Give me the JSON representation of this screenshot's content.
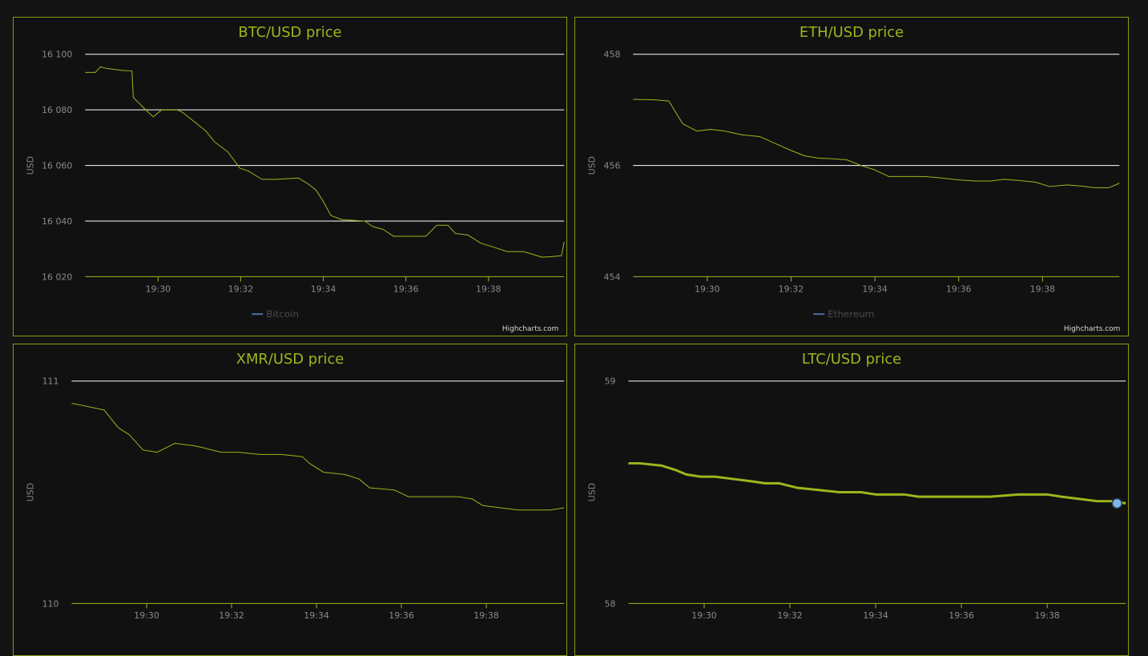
{
  "colors": {
    "series": "#9fb51c",
    "grid": "#ffffff",
    "axis": "#9fb51c",
    "marker": "#7cb5ec",
    "legend_symbol": "#4572a7",
    "title": "#9fb51c"
  },
  "chart_data": [
    {
      "type": "line",
      "title": "BTC/USD price",
      "ylabel": "USD",
      "xlabel": "",
      "ylim": [
        16020,
        16100
      ],
      "yticks": [
        16020,
        16040,
        16060,
        16080,
        16100
      ],
      "ytick_labels": [
        "16 020",
        "16 040",
        "16 060",
        "16 080",
        "16 100"
      ],
      "xlim": [
        "19:28:14",
        "19:39:50"
      ],
      "xtick_labels": [
        "19:30",
        "19:32",
        "19:34",
        "19:36",
        "19:38"
      ],
      "legend": "Bitcoin",
      "legend_placement": "bottom-center",
      "credits": "Highcharts.com",
      "grid": true,
      "series": [
        {
          "name": "Bitcoin",
          "x": [
            "19:28:14",
            "19:28:29",
            "19:28:36",
            "19:28:43",
            "19:29:07",
            "19:29:22",
            "19:29:24",
            "19:29:42",
            "19:29:53",
            "19:30:05",
            "19:30:28",
            "19:30:36",
            "19:31:09",
            "19:31:22",
            "19:31:41",
            "19:31:59",
            "19:32:11",
            "19:32:31",
            "19:32:51",
            "19:33:24",
            "19:33:40",
            "19:33:50",
            "19:34:00",
            "19:34:11",
            "19:34:27",
            "19:35:00",
            "19:35:12",
            "19:35:27",
            "19:35:42",
            "19:36:20",
            "19:36:29",
            "19:36:45",
            "19:37:01",
            "19:37:12",
            "19:37:30",
            "19:37:49",
            "19:38:09",
            "19:38:27",
            "19:38:51",
            "19:39:18",
            "19:39:32",
            "19:39:46",
            "19:39:50"
          ],
          "values": [
            16093.5,
            16093.5,
            16095.5,
            16095.0,
            16094.2,
            16094.0,
            16084.5,
            16080.0,
            16077.5,
            16080.0,
            16080.0,
            16079.0,
            16072.5,
            16068.5,
            16065.0,
            16059.0,
            16058.0,
            16055.0,
            16055.0,
            16055.5,
            16053.0,
            16051.0,
            16047.0,
            16042.0,
            16040.5,
            16040.0,
            16038.0,
            16037.0,
            16034.5,
            16034.5,
            16034.5,
            16038.5,
            16038.5,
            16035.5,
            16035.0,
            16032.0,
            16030.5,
            16029.0,
            16029.0,
            16027.0,
            16027.2,
            16027.5,
            16032.5
          ]
        }
      ]
    },
    {
      "type": "line",
      "title": "ETH/USD price",
      "ylabel": "USD",
      "xlabel": "",
      "ylim": [
        454,
        458
      ],
      "yticks": [
        454,
        456,
        458
      ],
      "ytick_labels": [
        "454",
        "456",
        "458"
      ],
      "xlim": [
        "19:28:14",
        "19:39:50"
      ],
      "xtick_labels": [
        "19:30",
        "19:32",
        "19:34",
        "19:36",
        "19:38"
      ],
      "legend": "Ethereum",
      "legend_placement": "bottom-center",
      "credits": "Highcharts.com",
      "grid": true,
      "series": [
        {
          "name": "Ethereum",
          "x": [
            "19:28:14",
            "19:28:45",
            "19:29:05",
            "19:29:25",
            "19:29:45",
            "19:30:05",
            "19:30:25",
            "19:30:50",
            "19:31:15",
            "19:31:40",
            "19:32:00",
            "19:32:20",
            "19:32:40",
            "19:33:00",
            "19:33:20",
            "19:33:40",
            "19:34:00",
            "19:34:20",
            "19:34:45",
            "19:35:10",
            "19:35:30",
            "19:36:00",
            "19:36:25",
            "19:36:45",
            "19:37:05",
            "19:37:25",
            "19:37:50",
            "19:38:10",
            "19:38:35",
            "19:38:55",
            "19:39:15",
            "19:39:35",
            "19:39:50"
          ],
          "values": [
            457.19,
            457.18,
            457.16,
            456.75,
            456.62,
            456.65,
            456.62,
            456.55,
            456.52,
            456.38,
            456.27,
            456.17,
            456.13,
            456.12,
            456.1,
            456.0,
            455.92,
            455.8,
            455.8,
            455.8,
            455.78,
            455.74,
            455.72,
            455.72,
            455.75,
            455.73,
            455.7,
            455.62,
            455.65,
            455.63,
            455.6,
            455.6,
            455.68
          ]
        }
      ]
    },
    {
      "type": "line",
      "title": "XMR/USD price",
      "ylabel": "USD",
      "xlabel": "",
      "ylim": [
        110,
        111
      ],
      "yticks": [
        110,
        111
      ],
      "ytick_labels": [
        "110",
        "111"
      ],
      "xlim": [
        "19:28:14",
        "19:39:50"
      ],
      "xtick_labels": [
        "19:30",
        "19:32",
        "19:34",
        "19:36",
        "19:38"
      ],
      "legend": "",
      "legend_placement": "bottom-center",
      "credits": "",
      "grid": true,
      "series": [
        {
          "name": "",
          "x": [
            "19:28:14",
            "19:28:30",
            "19:29:00",
            "19:29:20",
            "19:29:35",
            "19:29:55",
            "19:30:15",
            "19:30:40",
            "19:31:05",
            "19:31:20",
            "19:31:45",
            "19:32:10",
            "19:32:40",
            "19:33:10",
            "19:33:40",
            "19:33:50",
            "19:34:10",
            "19:34:40",
            "19:35:00",
            "19:35:15",
            "19:35:50",
            "19:36:10",
            "19:36:40",
            "19:37:20",
            "19:37:40",
            "19:37:55",
            "19:38:20",
            "19:38:45",
            "19:39:10",
            "19:39:30",
            "19:39:50"
          ],
          "values": [
            110.9,
            110.89,
            110.87,
            110.79,
            110.76,
            110.69,
            110.68,
            110.72,
            110.71,
            110.7,
            110.68,
            110.68,
            110.67,
            110.67,
            110.66,
            110.63,
            110.59,
            110.58,
            110.56,
            110.52,
            110.51,
            110.48,
            110.48,
            110.48,
            110.47,
            110.44,
            110.43,
            110.42,
            110.42,
            110.42,
            110.43
          ]
        }
      ]
    },
    {
      "type": "line",
      "title": "LTC/USD price",
      "ylabel": "USD",
      "xlabel": "",
      "ylim": [
        58,
        59
      ],
      "yticks": [
        58,
        59
      ],
      "ytick_labels": [
        "58",
        "59"
      ],
      "xlim": [
        "19:28:14",
        "19:39:50"
      ],
      "xtick_labels": [
        "19:30",
        "19:32",
        "19:34",
        "19:36",
        "19:38"
      ],
      "legend": "",
      "legend_placement": "bottom-center",
      "credits": "",
      "grid": true,
      "highlight_last": true,
      "series": [
        {
          "name": "",
          "x": [
            "19:28:14",
            "19:28:30",
            "19:29:00",
            "19:29:20",
            "19:29:35",
            "19:29:55",
            "19:30:15",
            "19:30:40",
            "19:31:05",
            "19:31:25",
            "19:31:45",
            "19:32:10",
            "19:32:40",
            "19:33:10",
            "19:33:40",
            "19:34:00",
            "19:34:10",
            "19:34:40",
            "19:35:00",
            "19:35:40",
            "19:36:00",
            "19:36:40",
            "19:37:20",
            "19:37:40",
            "19:38:00",
            "19:38:20",
            "19:38:45",
            "19:39:10",
            "19:39:30",
            "19:39:50"
          ],
          "values": [
            58.63,
            58.63,
            58.62,
            58.6,
            58.58,
            58.57,
            58.57,
            58.56,
            58.55,
            58.54,
            58.54,
            58.52,
            58.51,
            58.5,
            58.5,
            58.49,
            58.49,
            58.49,
            58.48,
            58.48,
            58.48,
            58.48,
            58.49,
            58.49,
            58.49,
            58.48,
            58.47,
            58.46,
            58.46,
            58.45
          ]
        }
      ]
    }
  ]
}
